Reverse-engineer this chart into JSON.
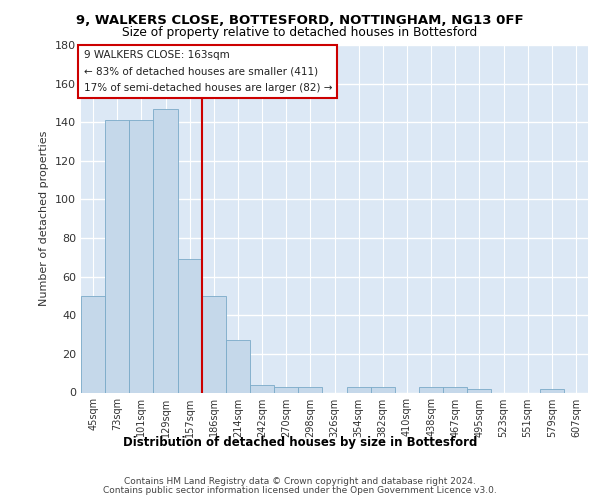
{
  "title1": "9, WALKERS CLOSE, BOTTESFORD, NOTTINGHAM, NG13 0FF",
  "title2": "Size of property relative to detached houses in Bottesford",
  "xlabel": "Distribution of detached houses by size in Bottesford",
  "ylabel": "Number of detached properties",
  "bar_labels": [
    "45sqm",
    "73sqm",
    "101sqm",
    "129sqm",
    "157sqm",
    "186sqm",
    "214sqm",
    "242sqm",
    "270sqm",
    "298sqm",
    "326sqm",
    "354sqm",
    "382sqm",
    "410sqm",
    "438sqm",
    "467sqm",
    "495sqm",
    "523sqm",
    "551sqm",
    "579sqm",
    "607sqm"
  ],
  "bar_values": [
    50,
    141,
    141,
    147,
    69,
    50,
    27,
    4,
    3,
    3,
    0,
    3,
    3,
    0,
    3,
    3,
    2,
    0,
    0,
    2,
    0
  ],
  "bar_color": "#c5d8ea",
  "bar_edge_color": "#7aaac8",
  "ylim": [
    0,
    180
  ],
  "yticks": [
    0,
    20,
    40,
    60,
    80,
    100,
    120,
    140,
    160,
    180
  ],
  "red_line_bar_index": 4,
  "annotation_line1": "9 WALKERS CLOSE: 163sqm",
  "annotation_line2": "← 83% of detached houses are smaller (411)",
  "annotation_line3": "17% of semi-detached houses are larger (82) →",
  "annotation_color": "#cc0000",
  "bg_color": "#dce8f5",
  "grid_color": "#ffffff",
  "footer1": "Contains HM Land Registry data © Crown copyright and database right 2024.",
  "footer2": "Contains public sector information licensed under the Open Government Licence v3.0.",
  "fig_width": 6.0,
  "fig_height": 5.0,
  "dpi": 100
}
